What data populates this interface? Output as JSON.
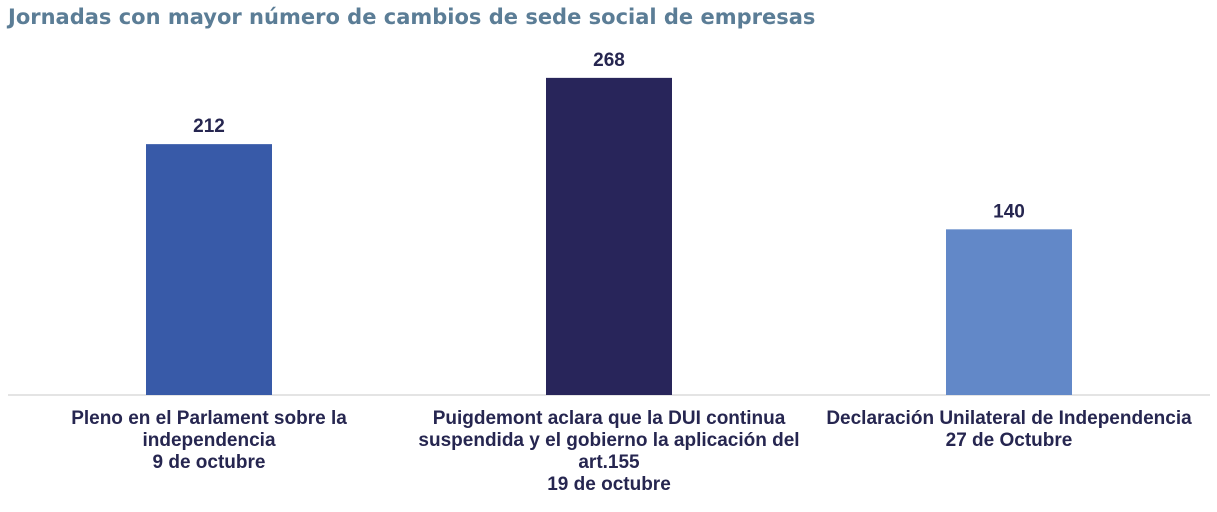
{
  "chart_data": {
    "type": "bar",
    "title": "Jornadas con mayor número de cambios de sede social de empresas",
    "categories": [
      [
        "Pleno en el Parlament sobre la",
        "independencia",
        "9 de octubre"
      ],
      [
        "Puigdemont aclara que la DUI continua",
        "suspendida y el gobierno la aplicación del",
        "art.155",
        "19 de octubre"
      ],
      [
        "Declaración Unilateral de Independencia",
        "27 de Octubre"
      ]
    ],
    "values": [
      212,
      268,
      140
    ],
    "colors": [
      "#385aa8",
      "#28255a",
      "#6288c8"
    ],
    "ylim": [
      0,
      300
    ],
    "grid": false,
    "legend": "none",
    "data_labels": true
  }
}
